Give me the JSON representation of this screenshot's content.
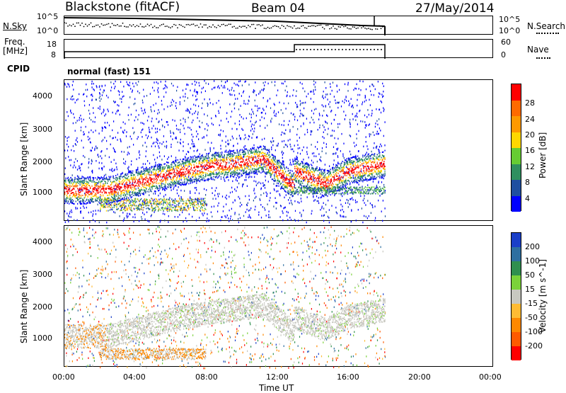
{
  "header": {
    "station": "Blackstone (fitACF)",
    "beam": "Beam 04",
    "date": "27/May/2014"
  },
  "strip_labels": {
    "nsky": "N.Sky",
    "nsearch": "N.Search",
    "freq": "Freq.",
    "freq_unit": "[MHz]",
    "nave": "Nave",
    "cpid": "CPID",
    "cpid_value": "normal (fast) 151"
  },
  "strip_ticks": {
    "noise_top_left": "10^5",
    "noise_bot_left": "10^0",
    "noise_top_right": "10^5",
    "noise_bot_right": "10^0",
    "freq_top": "18",
    "freq_bot": "8",
    "nave_top": "60",
    "nave_bot": "0"
  },
  "colors": {
    "power": [
      "#0000ff",
      "#1f4fa0",
      "#2f8f5f",
      "#66cc33",
      "#ffd700",
      "#ff9900",
      "#ff6a00",
      "#ff0000"
    ],
    "velocity": [
      "#1a3fc8",
      "#2e6fa0",
      "#2f8f4f",
      "#7bd23a",
      "#c8c8c0",
      "#ffbb33",
      "#ff8800",
      "#ff5a00",
      "#ff0000"
    ]
  },
  "chart_data": [
    {
      "type": "heatmap",
      "title": "",
      "xlabel": "Time UT",
      "ylabel": "Slant Range [km]",
      "x_ticks": [
        "00:00",
        "04:00",
        "08:00",
        "12:00",
        "16:00",
        "20:00",
        "00:00"
      ],
      "y_ticks": [
        "1000",
        "2000",
        "3000",
        "4000"
      ],
      "colorbar_label": "Power [dB]",
      "colorbar_ticks": [
        "4",
        "8",
        "12",
        "16",
        "20",
        "24",
        "28"
      ],
      "grid": false
    },
    {
      "type": "heatmap",
      "title": "",
      "xlabel": "Time UT",
      "ylabel": "Slant Range [km]",
      "x_ticks": [
        "00:00",
        "04:00",
        "08:00",
        "12:00",
        "16:00",
        "20:00",
        "00:00"
      ],
      "y_ticks": [
        "1000",
        "2000",
        "3000",
        "4000"
      ],
      "colorbar_label": "Velocity [m s^-1]",
      "colorbar_ticks": [
        "200",
        "100",
        "50",
        "15",
        "-15",
        "-50",
        "-100",
        "-200"
      ],
      "grid": false
    }
  ],
  "time_axis_label": "Time UT"
}
